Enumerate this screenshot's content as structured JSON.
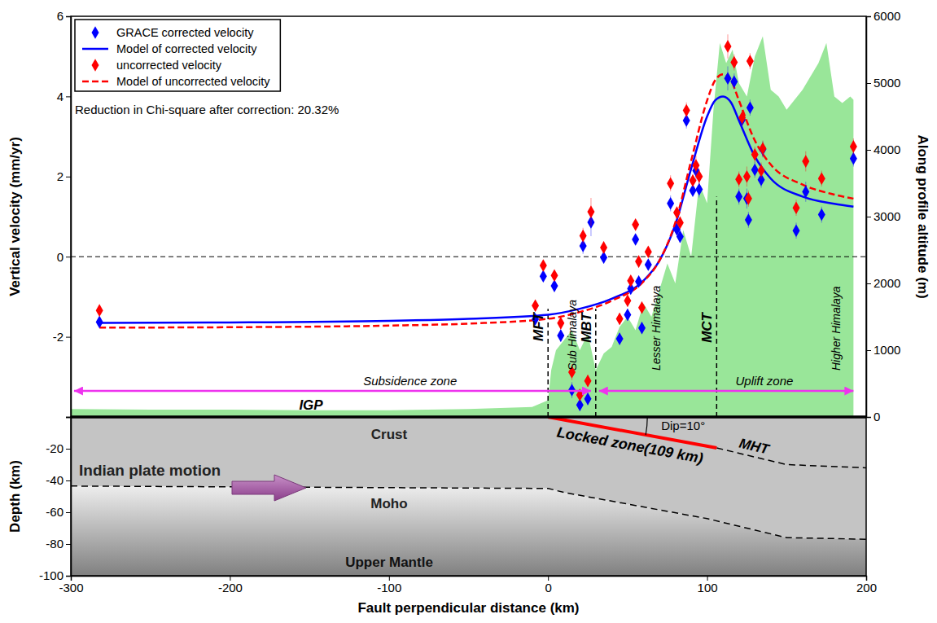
{
  "chart_data": [
    {
      "type": "scatter",
      "annotation": "Reduction in Chi-square after correction: 20.32%",
      "xlim": [
        -300,
        200
      ],
      "ylabel": "Vertical velocity (mm/yr)",
      "ylim": [
        -4,
        6
      ],
      "yticks": [
        -2,
        0,
        2,
        4,
        6
      ],
      "y2label": "Along profile altitude (m)",
      "y2lim": [
        0,
        6000
      ],
      "y2ticks": [
        0,
        1000,
        2000,
        3000,
        4000,
        5000,
        6000
      ],
      "tick_labels": "y",
      "legend": "upper left",
      "hlines": [
        0
      ],
      "series": [
        {
          "name": "GRACE corrected velocity",
          "type": "scatter",
          "marker": "diamond",
          "color": "#0000ff",
          "x": [
            -282,
            -8,
            -3,
            4,
            8,
            15,
            20,
            25,
            22,
            27,
            35,
            45,
            50,
            52,
            55,
            57,
            59,
            63,
            77,
            81,
            83,
            87,
            91,
            93,
            95,
            113,
            117,
            120,
            122,
            125,
            126,
            127,
            130,
            134,
            135,
            156,
            162,
            172,
            192
          ],
          "values": [
            -1.63,
            -1.56,
            -0.49,
            -0.73,
            -1.97,
            -3.33,
            -3.7,
            -3.55,
            0.27,
            0.86,
            -0.02,
            -2.05,
            -1.45,
            -0.8,
            0.43,
            -0.62,
            -1.78,
            -0.2,
            1.33,
            0.68,
            0.5,
            3.4,
            1.65,
            2.15,
            1.68,
            4.45,
            4.37,
            1.5,
            3.42,
            1.45,
            0.92,
            3.72,
            2.17,
            1.92,
            2.68,
            0.65,
            1.62,
            1.05,
            2.45
          ],
          "errors": [
            0.1,
            0.12,
            0.12,
            0.12,
            0.15,
            0.2,
            0.15,
            0.15,
            0.2,
            0.35,
            0.15,
            0.15,
            0.15,
            0.12,
            0.12,
            0.15,
            0.15,
            0.12,
            0.2,
            0.15,
            0.15,
            0.2,
            0.15,
            0.25,
            0.2,
            0.3,
            0.2,
            0.2,
            0.2,
            0.25,
            0.2,
            0.2,
            0.2,
            0.2,
            0.2,
            0.2,
            0.25,
            0.2,
            0.2
          ]
        },
        {
          "name": "Model of corrected velocity",
          "type": "line",
          "line_style": "solid",
          "color": "#0000ff",
          "x": [
            -282,
            -200,
            -100,
            -50,
            0,
            20,
            40,
            60,
            70,
            80,
            90,
            100,
            105,
            110,
            115,
            120,
            130,
            140,
            160,
            180,
            192
          ],
          "values": [
            -1.65,
            -1.64,
            -1.6,
            -1.55,
            -1.45,
            -1.3,
            -1.05,
            -0.6,
            -0.1,
            0.8,
            2.2,
            3.5,
            3.9,
            4.0,
            3.85,
            3.4,
            2.5,
            1.95,
            1.5,
            1.32,
            1.25
          ]
        },
        {
          "name": "uncorrected velocity",
          "type": "scatter",
          "marker": "diamond",
          "color": "#ff0000",
          "x": [
            -282,
            -8,
            -3,
            4,
            8,
            15,
            20,
            25,
            22,
            27,
            35,
            45,
            50,
            52,
            55,
            57,
            59,
            63,
            77,
            81,
            83,
            87,
            91,
            93,
            95,
            113,
            117,
            120,
            122,
            125,
            126,
            127,
            130,
            134,
            135,
            156,
            162,
            172,
            192
          ],
          "values": [
            -1.34,
            -1.22,
            -0.22,
            -0.47,
            -1.66,
            -2.88,
            -3.45,
            -3.1,
            0.52,
            1.12,
            0.23,
            -1.55,
            -1.1,
            -0.6,
            0.8,
            -0.12,
            -1.27,
            0.12,
            1.83,
            1.1,
            0.85,
            3.65,
            1.9,
            2.28,
            2.0,
            5.25,
            4.85,
            1.93,
            3.47,
            2.0,
            1.45,
            4.88,
            2.55,
            2.15,
            2.7,
            1.22,
            2.38,
            1.95,
            2.75
          ],
          "errors": [
            0.1,
            0.12,
            0.12,
            0.12,
            0.15,
            0.2,
            0.15,
            0.15,
            0.2,
            0.35,
            0.15,
            0.15,
            0.15,
            0.12,
            0.12,
            0.15,
            0.15,
            0.12,
            0.2,
            0.15,
            0.15,
            0.2,
            0.15,
            0.25,
            0.2,
            0.3,
            0.2,
            0.2,
            0.2,
            0.25,
            0.2,
            0.2,
            0.2,
            0.2,
            0.2,
            0.2,
            0.25,
            0.2,
            0.2
          ]
        },
        {
          "name": "Model of uncorrected velocity",
          "type": "line",
          "line_style": "dashed",
          "color": "#ff0000",
          "x": [
            -282,
            -200,
            -100,
            -50,
            0,
            20,
            40,
            60,
            70,
            80,
            90,
            100,
            105,
            110,
            115,
            120,
            130,
            140,
            160,
            180,
            192
          ],
          "values": [
            -1.77,
            -1.76,
            -1.72,
            -1.67,
            -1.55,
            -1.38,
            -1.1,
            -0.62,
            -0.1,
            0.85,
            2.4,
            3.9,
            4.4,
            4.55,
            4.4,
            3.9,
            2.9,
            2.3,
            1.8,
            1.55,
            1.45
          ]
        },
        {
          "type": "area",
          "axis": "y2",
          "color": "#99e699",
          "x": [
            -300,
            -250,
            -200,
            -150,
            -100,
            -50,
            -10,
            0,
            2,
            5,
            10,
            15,
            20,
            25,
            30,
            35,
            40,
            45,
            50,
            55,
            60,
            65,
            70,
            75,
            80,
            85,
            90,
            95,
            100,
            104,
            108,
            112,
            116,
            120,
            125,
            130,
            135,
            140,
            145,
            150,
            160,
            170,
            175,
            180,
            185,
            190,
            192
          ],
          "values": [
            120,
            110,
            110,
            100,
            100,
            120,
            150,
            250,
            700,
            1000,
            1150,
            1300,
            1000,
            1250,
            700,
            950,
            1050,
            1350,
            1500,
            1300,
            1700,
            1500,
            1900,
            2300,
            2000,
            2800,
            2400,
            3500,
            3200,
            4600,
            5600,
            5300,
            5500,
            5000,
            4800,
            5400,
            5700,
            4900,
            4800,
            4600,
            4900,
            5300,
            5600,
            4800,
            4700,
            4800,
            4750
          ]
        }
      ],
      "faults": [
        {
          "label": "MFT",
          "x": 0,
          "top": -1.3
        },
        {
          "label": "MBT",
          "x": 30,
          "top": -1.3
        },
        {
          "label": "MCT",
          "x": 106,
          "top": 1.5
        }
      ],
      "regions": [
        "Sub Himalaya",
        "Lesser Himalaya",
        "Higher Himalaya"
      ],
      "zones": [
        {
          "label": "Subsidence zone",
          "x": [
            -298,
            27
          ],
          "y": -3.35,
          "color": "#ee33ee"
        },
        {
          "label": "Uplift zone",
          "x": [
            32,
            192
          ],
          "y": -3.35,
          "color": "#ee33ee"
        }
      ],
      "zone_label": "IGP"
    },
    {
      "type": "cross-section",
      "xlabel": "Fault perpendicular distance (km)",
      "xlim": [
        -300,
        200
      ],
      "xticks": [
        -300,
        -200,
        -100,
        0,
        100,
        200
      ],
      "ylabel": "Depth (km)",
      "ylim": [
        -100,
        0
      ],
      "yticks": [
        -20,
        -40,
        -60,
        -80,
        -100
      ],
      "moho": {
        "name": "Moho",
        "x": [
          -300,
          0,
          10,
          100,
          150,
          200
        ],
        "values": [
          -43.5,
          -45,
          -47.5,
          -64,
          -76,
          -77
        ]
      },
      "locked_zone": {
        "name": "Locked zone(109 km)",
        "color": "#ff0000",
        "x": [
          0,
          106
        ],
        "values": [
          0,
          -19.5
        ]
      },
      "mht": {
        "name": "MHT",
        "x": [
          106,
          150,
          200
        ],
        "values": [
          -19.5,
          -30,
          -32
        ]
      },
      "dip_label": "Dip=10°",
      "crust_label": "Crust",
      "mantle_label": "Upper Mantle",
      "plate_motion_label": "Indian plate motion"
    }
  ]
}
